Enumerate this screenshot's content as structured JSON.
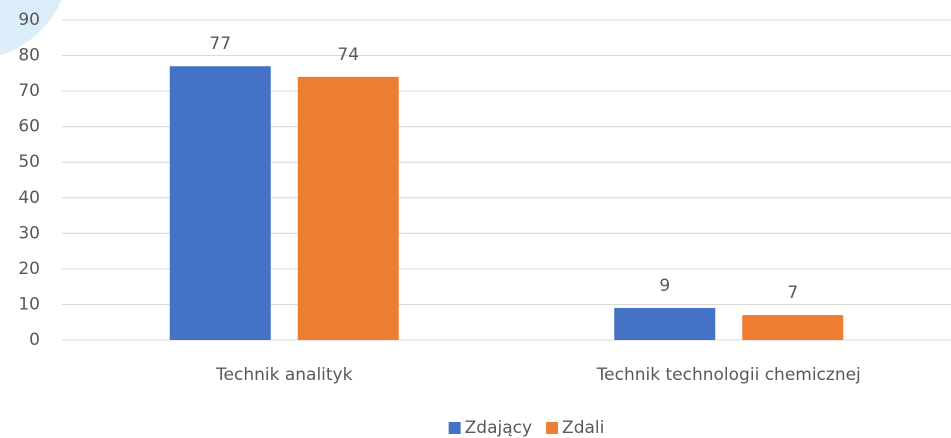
{
  "chart_data": {
    "type": "bar",
    "categories": [
      "Technik analityk",
      "Technik technologii chemicznej"
    ],
    "series": [
      {
        "name": "Zdający",
        "color": "#4472c4",
        "values": [
          77,
          9
        ]
      },
      {
        "name": "Zdali",
        "color": "#ed7d31",
        "values": [
          74,
          7
        ]
      }
    ],
    "ylim": [
      0,
      90
    ],
    "yticks": [
      0,
      10,
      20,
      30,
      40,
      50,
      60,
      70,
      80,
      90
    ],
    "grid": true,
    "legend": "bottom"
  }
}
